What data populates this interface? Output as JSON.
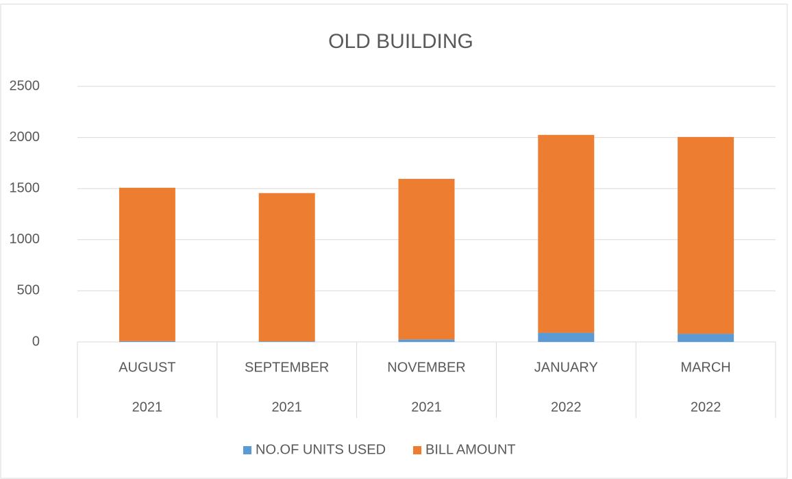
{
  "chart_data": {
    "type": "stacked_bar",
    "title": "OLD BUILDING",
    "categories": [
      [
        "AUGUST",
        "2021"
      ],
      [
        "SEPTEMBER",
        "2021"
      ],
      [
        "NOVEMBER",
        "2021"
      ],
      [
        "JANUARY",
        "2022"
      ],
      [
        "MARCH",
        "2022"
      ]
    ],
    "series": [
      {
        "name": "NO.OF UNITS USED",
        "color": "#5b9bd5",
        "values": [
          8,
          6,
          25,
          90,
          80
        ]
      },
      {
        "name": "BILL AMOUNT",
        "color": "#ed7d31",
        "values": [
          1500,
          1450,
          1570,
          1935,
          1925
        ]
      }
    ],
    "ylim": [
      0,
      2500
    ],
    "yticks": [
      0,
      500,
      1000,
      1500,
      2000,
      2500
    ],
    "grid": true,
    "legend": "bottom"
  }
}
